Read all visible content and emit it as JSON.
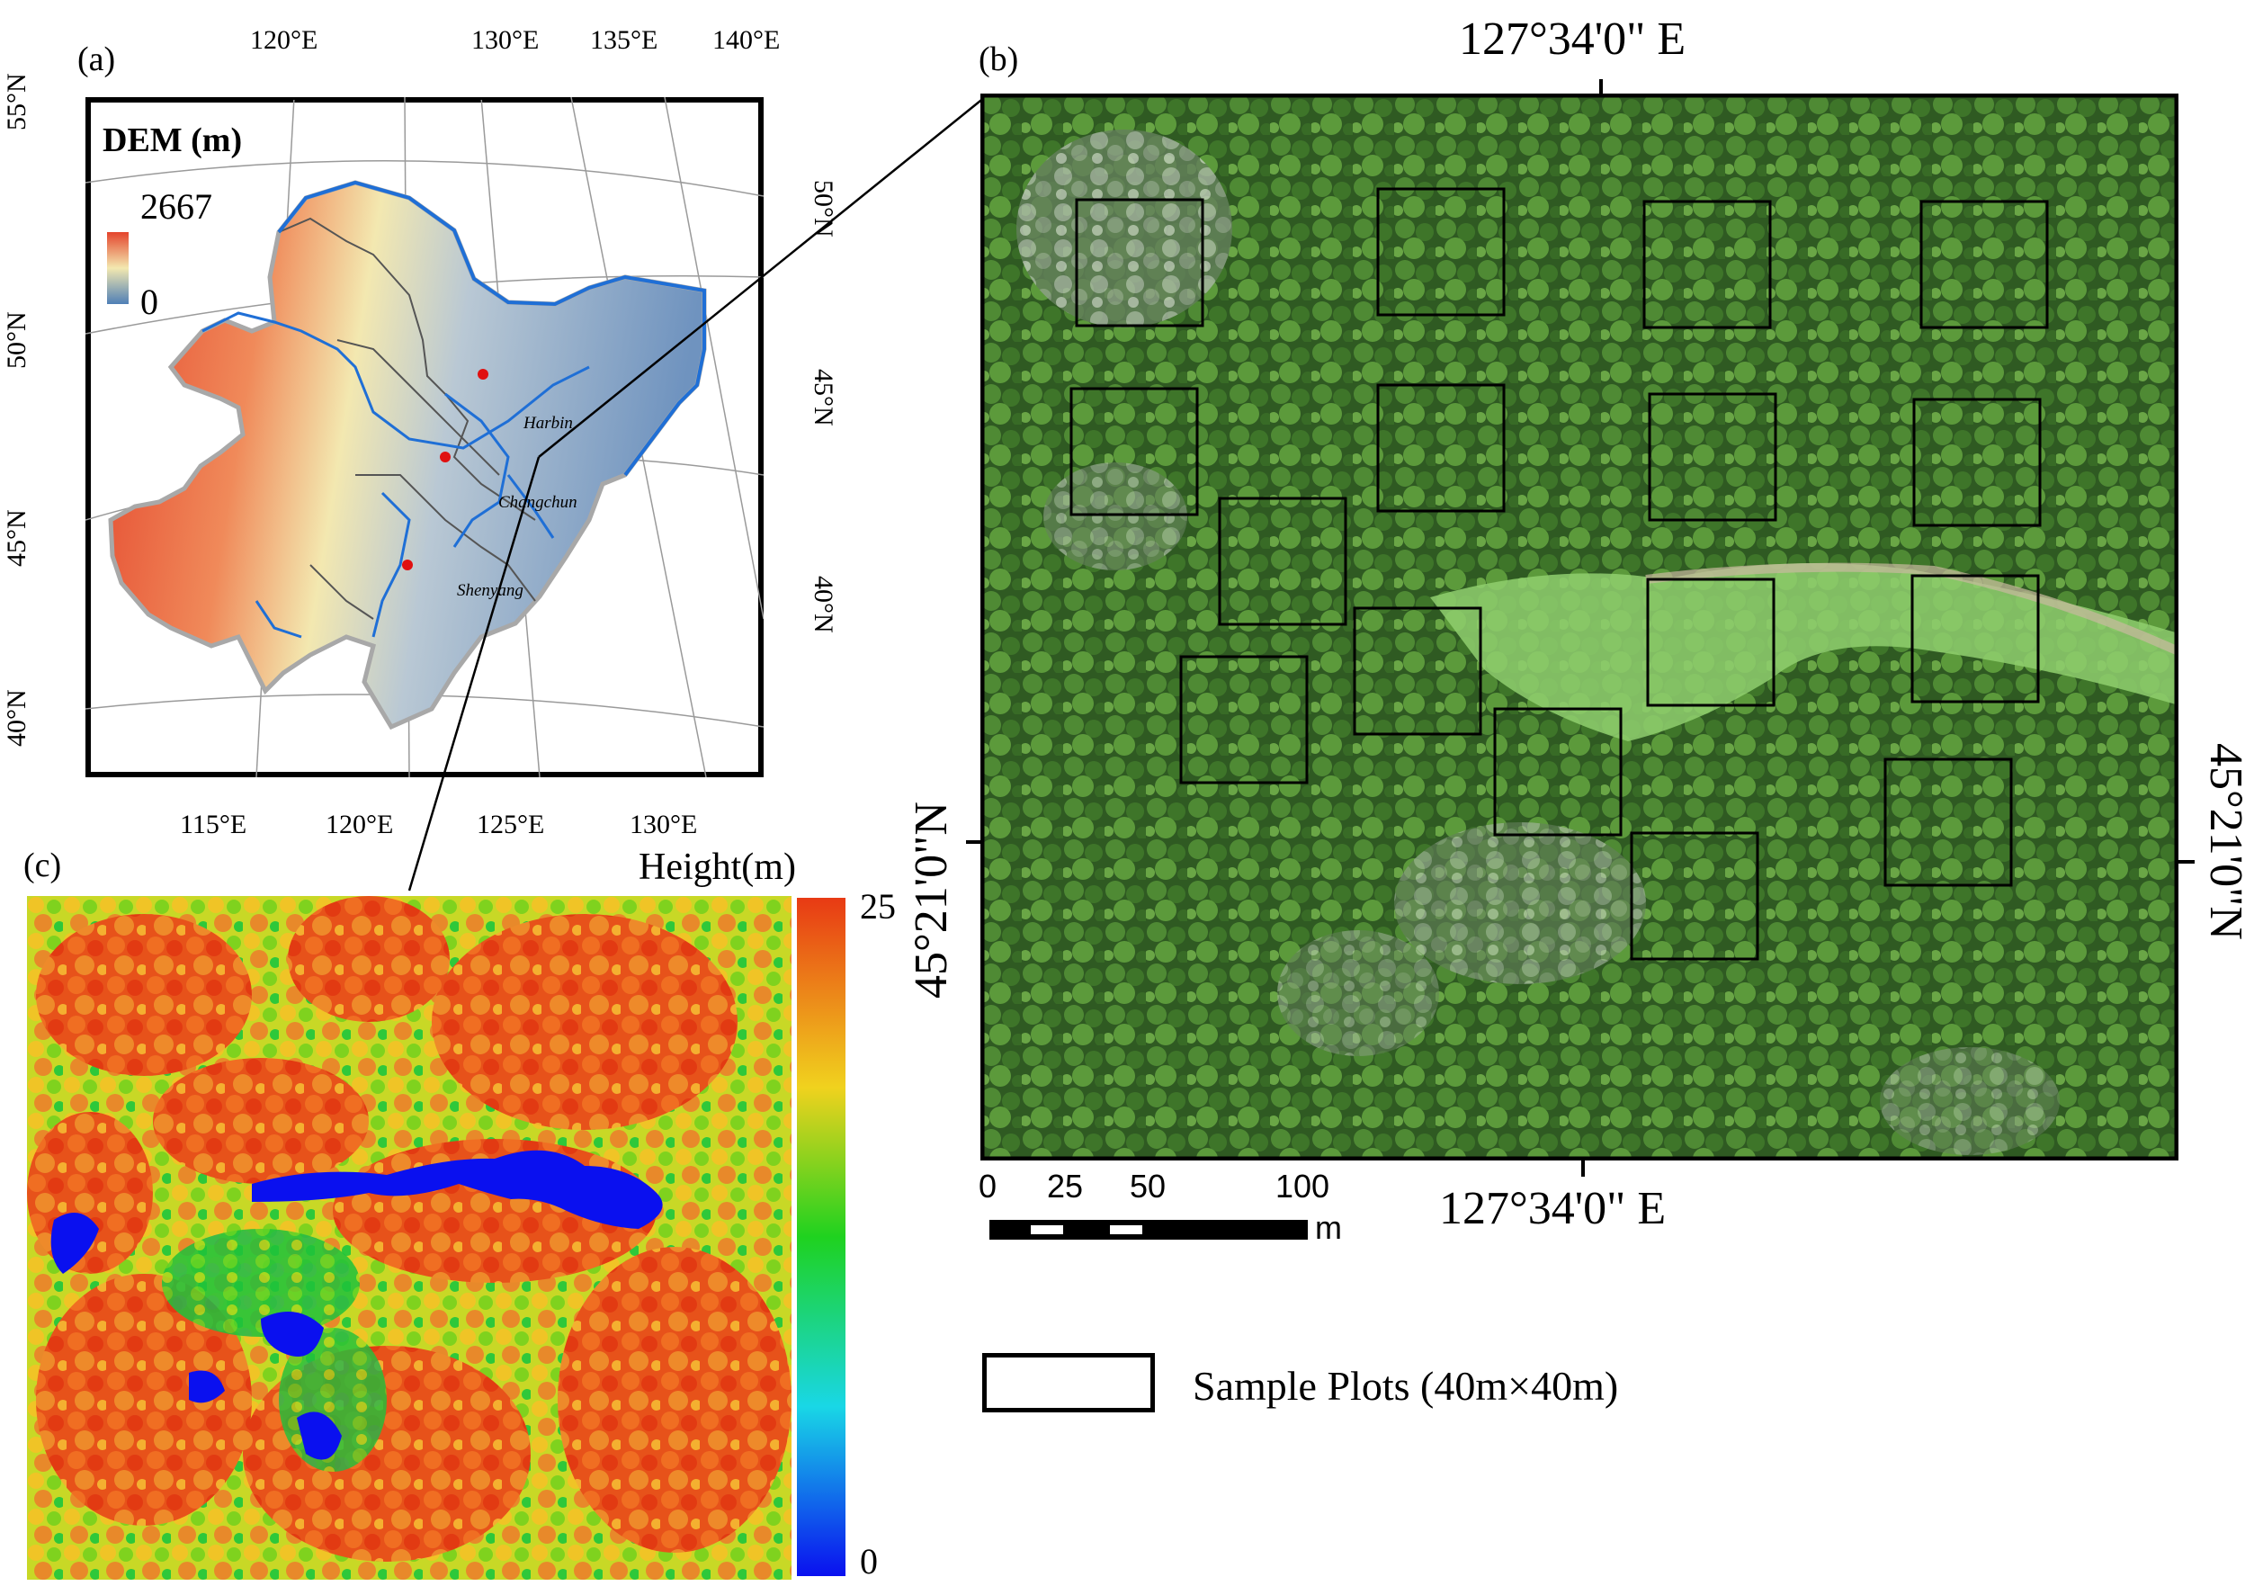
{
  "panel_a": {
    "label": "(a)",
    "legend_title": "DEM (m)",
    "legend_max": "2667",
    "legend_min": "0",
    "top_lon_labels": [
      "120°E",
      "130°E",
      "135°E",
      "140°E"
    ],
    "bottom_lon_labels": [
      "115°E",
      "120°E",
      "125°E",
      "130°E"
    ],
    "left_lat_labels": [
      "55°N",
      "50°N",
      "45°N",
      "40°N"
    ],
    "right_lat_labels": [
      "50°N",
      "45°N",
      "40°N"
    ],
    "cities": [
      "Harbin",
      "Changchun",
      "Shenyang"
    ],
    "colors": {
      "dem_high": "#e4442c",
      "dem_mid": "#f3e8b0",
      "dem_low": "#5b87b8",
      "river": "#1f6fd6",
      "city": "#e01010"
    }
  },
  "panel_b": {
    "label": "(b)",
    "top_lon": "127°34'0\" E",
    "bottom_lon": "127°34'0\" E",
    "left_lat": "45°21'0\"N",
    "right_lat": "45°21'0\"N",
    "scale_ticks": [
      "0",
      "25",
      "50",
      "100"
    ],
    "scale_unit": "m",
    "plot_count": 16
  },
  "panel_c": {
    "label": "(c)",
    "colorbar_title": "Height(m)",
    "colorbar_max": "25",
    "colorbar_min": "0",
    "colors": {
      "high": "#e83a14",
      "mid_high": "#f0d21e",
      "mid": "#1fd21f",
      "low_mid": "#19d7e6",
      "low": "#0a10ef"
    }
  },
  "legend": {
    "label": "Sample Plots (40m×40m)"
  }
}
